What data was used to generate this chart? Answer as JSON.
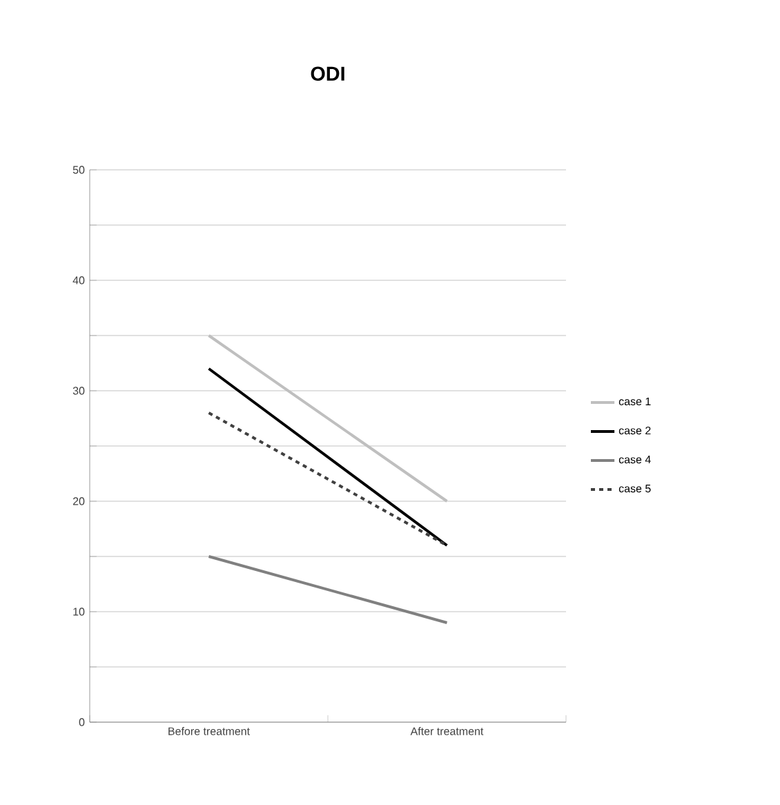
{
  "chart_data": {
    "type": "line",
    "title": "ODI",
    "categories": [
      "Before treatment",
      "After treatment"
    ],
    "series": [
      {
        "name": "case 1",
        "color": "#bfbfbf",
        "values": [
          35,
          20
        ]
      },
      {
        "name": "case 2",
        "color": "#000000",
        "values": [
          32,
          16
        ]
      },
      {
        "name": "case 4",
        "color": "#808080",
        "values": [
          15,
          9
        ]
      },
      {
        "name": "case 5",
        "color": "#404040",
        "values": [
          28,
          16
        ],
        "line_style": "dashed"
      }
    ],
    "ylim": [
      0,
      50
    ],
    "yticks": [
      0,
      {
        "value": 5,
        "label": null
      },
      10,
      {
        "value": 15,
        "label": null
      },
      20,
      {
        "value": 25,
        "label": null
      },
      30,
      {
        "value": 35,
        "label": null
      },
      40,
      {
        "value": 45,
        "label": null
      },
      50
    ],
    "grid": "y",
    "legend": "right",
    "marker": "none",
    "line_style": "solid"
  }
}
